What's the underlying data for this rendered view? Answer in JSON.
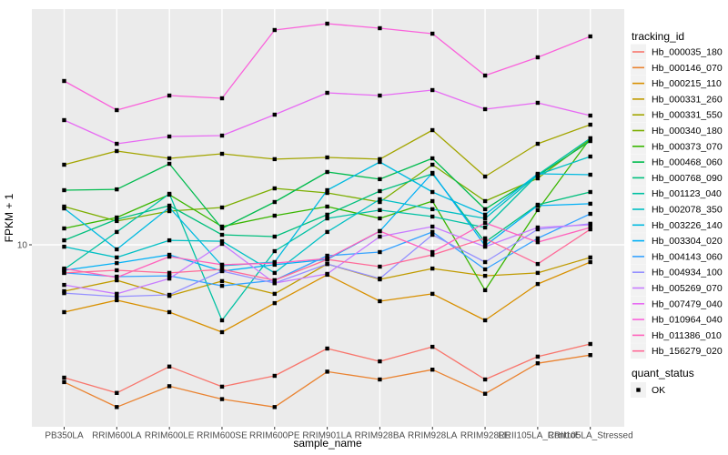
{
  "figure": {
    "background": "#FFFFFF",
    "panel_background": "#EBEBEB",
    "grid_color": "#FFFFFF",
    "axis_text_color": "#4D4D4D",
    "axis_title_color": "#000000",
    "point_color": "#000000"
  },
  "chart_data": {
    "type": "line",
    "title": "",
    "xlabel": "sample_name",
    "ylabel": "FPKM + 1",
    "y_scale": "log10",
    "y_tick_values": [
      10
    ],
    "y_tick_labels": [
      "10"
    ],
    "ylim": [
      2.6,
      58
    ],
    "grid": "major",
    "point_shape": "filled-square",
    "legend_position": "right",
    "categories": [
      "PB350LA",
      "RRIM600LA",
      "RRIM600LE",
      "RRIM600SE",
      "RRIM600PE",
      "RRIM901LA",
      "RRIM928BA",
      "RRIM928LA",
      "RRIM928LE",
      "RRII105LA_Control",
      "RRII105LA_Stressed"
    ],
    "series": [
      {
        "name": "Hb_000035_180",
        "color": "#F8766D",
        "values": [
          3.72,
          3.32,
          4.04,
          3.48,
          3.77,
          4.62,
          4.2,
          4.68,
          3.67,
          4.35,
          4.78
        ]
      },
      {
        "name": "Hb_000146_070",
        "color": "#EA8331",
        "values": [
          3.6,
          2.99,
          3.49,
          3.17,
          2.99,
          3.89,
          3.67,
          3.95,
          3.3,
          4.14,
          4.4
        ]
      },
      {
        "name": "Hb_000215_110",
        "color": "#D89000",
        "values": [
          6.06,
          6.62,
          6.06,
          5.22,
          6.48,
          8.0,
          6.57,
          6.94,
          5.7,
          7.47,
          8.79
        ]
      },
      {
        "name": "Hb_000331_260",
        "color": "#C09B00",
        "values": [
          7.08,
          7.68,
          6.84,
          7.63,
          6.94,
          8.67,
          7.73,
          8.38,
          7.94,
          8.11,
          9.1
        ]
      },
      {
        "name": "Hb_000331_550",
        "color": "#A3A500",
        "values": [
          18.15,
          20.09,
          19.03,
          19.69,
          18.91,
          19.16,
          18.91,
          23.48,
          16.62,
          21.21,
          24.45
        ]
      },
      {
        "name": "Hb_000340_180",
        "color": "#7CAE00",
        "values": [
          13.29,
          11.93,
          12.85,
          13.2,
          15.22,
          14.71,
          13.75,
          18.15,
          13.84,
          16.4,
          21.94
        ]
      },
      {
        "name": "Hb_000373_070",
        "color": "#39B600",
        "values": [
          11.3,
          12.25,
          14.52,
          11.45,
          12.42,
          13.29,
          12.17,
          13.84,
          7.13,
          12.94,
          22.08
        ]
      },
      {
        "name": "Hb_000468_060",
        "color": "#00BB4E",
        "values": [
          15.01,
          15.11,
          18.27,
          11.3,
          13.75,
          17.19,
          16.29,
          19.03,
          13.03,
          16.73,
          21.64
        ]
      },
      {
        "name": "Hb_000768_090",
        "color": "#00BF7D",
        "values": [
          10.34,
          12.09,
          13.38,
          10.77,
          10.63,
          12.51,
          14.91,
          16.96,
          10.2,
          13.47,
          14.81
        ]
      },
      {
        "name": "Hb_001123_040",
        "color": "#00C1A3",
        "values": [
          8.33,
          11.0,
          14.61,
          5.7,
          9.54,
          12.17,
          12.94,
          12.34,
          11.37,
          16.85,
          22.08
        ]
      },
      {
        "name": "Hb_002078_350",
        "color": "#00BFC4",
        "values": [
          9.86,
          9.1,
          10.34,
          10.27,
          8.11,
          11.0,
          14.03,
          13.03,
          12.17,
          16.85,
          19.29
        ]
      },
      {
        "name": "Hb_003226_140",
        "color": "#00BAE0",
        "values": [
          13.11,
          9.67,
          13.2,
          8.56,
          8.79,
          15.01,
          18.52,
          14.81,
          12.51,
          16.96,
          16.85
        ]
      },
      {
        "name": "Hb_003304_020",
        "color": "#00B0F6",
        "values": [
          8.27,
          8.73,
          9.28,
          8.22,
          8.62,
          8.97,
          11.07,
          17.08,
          9.93,
          13.38,
          13.57
        ]
      },
      {
        "name": "Hb_004143_060",
        "color": "#35A2FF",
        "values": [
          8.11,
          7.89,
          7.94,
          7.37,
          7.68,
          9.22,
          9.47,
          11.0,
          8.33,
          10.49,
          12.59
        ]
      },
      {
        "name": "Hb_004934_100",
        "color": "#9590FF",
        "values": [
          6.98,
          6.8,
          6.89,
          8.22,
          7.52,
          8.67,
          7.78,
          10.77,
          8.79,
          11.22,
          11.69
        ]
      },
      {
        "name": "Hb_005269_070",
        "color": "#C77CFF",
        "values": [
          7.42,
          6.94,
          7.78,
          10.07,
          7.52,
          8.05,
          10.63,
          11.45,
          9.86,
          11.37,
          11.61
        ]
      },
      {
        "name": "Hb_007479_040",
        "color": "#E76BF3",
        "values": [
          25.29,
          21.21,
          22.39,
          22.54,
          26.34,
          30.98,
          30.36,
          31.62,
          27.43,
          28.76,
          26.16
        ]
      },
      {
        "name": "Hb_010964_040",
        "color": "#FA62DB",
        "values": [
          33.84,
          27.25,
          30.36,
          29.75,
          49.45,
          51.85,
          50.12,
          48.13,
          35.24,
          40.36,
          47.15
        ]
      },
      {
        "name": "Hb_011386_010",
        "color": "#FF62BC",
        "values": [
          8.38,
          7.84,
          9.16,
          8.62,
          8.73,
          9.03,
          11.07,
          9.47,
          11.77,
          10.2,
          11.37
        ]
      },
      {
        "name": "Hb_156279_020",
        "color": "#FF6A98",
        "values": [
          8.11,
          8.27,
          8.11,
          8.33,
          7.68,
          8.97,
          8.5,
          9.28,
          10.49,
          8.67,
          11.22
        ]
      }
    ]
  },
  "legend": {
    "tracking": {
      "title": "tracking_id"
    },
    "quant": {
      "title": "quant_status",
      "items": [
        {
          "label": "OK",
          "marker": "black-square"
        }
      ]
    }
  }
}
